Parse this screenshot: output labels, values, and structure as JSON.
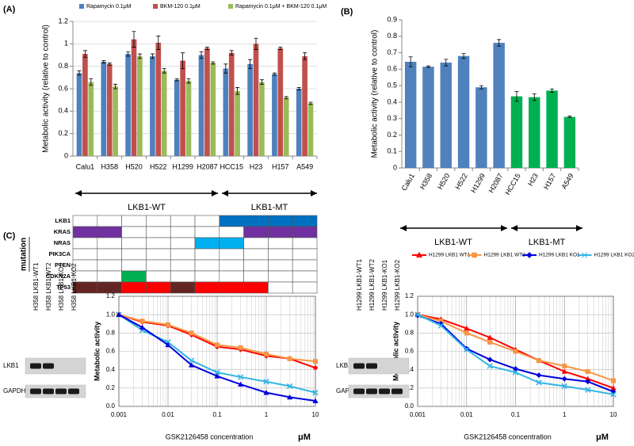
{
  "panel_labels": [
    "(A)",
    "(B)",
    "(C)"
  ],
  "chart_data": [
    {
      "type": "bar",
      "ylabel": "Metabolic activity (relative to control)",
      "categories": [
        "Calu1",
        "H358",
        "H520",
        "H522",
        "H1299",
        "H2087",
        "HCC15",
        "H23",
        "H157",
        "A549"
      ],
      "series": [
        {
          "name": "Rapamycin 0.1μM",
          "color": "#4f81bd",
          "values": [
            0.74,
            0.84,
            0.91,
            0.89,
            0.68,
            0.9,
            0.78,
            0.82,
            0.73,
            0.6
          ],
          "errors": [
            0.02,
            0.01,
            0.02,
            0.02,
            0.01,
            0.03,
            0.04,
            0.04,
            0.01,
            0.01
          ]
        },
        {
          "name": "BKM-120 0.1μM",
          "color": "#c0504d",
          "values": [
            0.91,
            0.82,
            1.04,
            1.01,
            0.85,
            0.96,
            0.92,
            1.0,
            0.96,
            0.89
          ],
          "errors": [
            0.03,
            0.01,
            0.07,
            0.06,
            0.07,
            0.01,
            0.02,
            0.05,
            0.01,
            0.03
          ]
        },
        {
          "name": "Rapamycin 0.1μM + BKM-120 0.1μM",
          "color": "#9bbb59",
          "values": [
            0.66,
            0.62,
            0.89,
            0.76,
            0.67,
            0.83,
            0.58,
            0.66,
            0.52,
            0.47
          ],
          "errors": [
            0.03,
            0.02,
            0.02,
            0.02,
            0.02,
            0.01,
            0.03,
            0.02,
            0.01,
            0.01
          ]
        }
      ],
      "ylim": [
        0,
        1.2
      ],
      "yticks": [
        0,
        0.2,
        0.4,
        0.6,
        0.8,
        1,
        1.2
      ],
      "grid": true,
      "annotations": [
        "LKB1-WT",
        "LKB1-MT"
      ]
    },
    {
      "type": "bar",
      "ylabel": "Metabolic activity (relative to control)",
      "categories": [
        "Calu1",
        "H358",
        "H520",
        "H522",
        "H1299",
        "H2087",
        "HCC15",
        "H23",
        "H157",
        "A549"
      ],
      "values": [
        0.645,
        0.615,
        0.64,
        0.68,
        0.49,
        0.76,
        0.435,
        0.43,
        0.47,
        0.31
      ],
      "errors": [
        0.03,
        0.005,
        0.02,
        0.015,
        0.01,
        0.02,
        0.03,
        0.02,
        0.01,
        0.005
      ],
      "colors": [
        "#4f81bd",
        "#4f81bd",
        "#4f81bd",
        "#4f81bd",
        "#4f81bd",
        "#4f81bd",
        "#00b050",
        "#00b050",
        "#00b050",
        "#00b050"
      ],
      "ylim": [
        0,
        0.9
      ],
      "yticks": [
        0,
        0.1,
        0.2,
        0.3,
        0.4,
        0.5,
        0.6,
        0.7,
        0.8,
        0.9
      ],
      "grid": false,
      "annotations": [
        "LKB1-WT",
        "LKB1-MT"
      ]
    },
    {
      "type": "line",
      "ylabel": "Metabolic activity",
      "xlabel": "GSK2126458 concentration",
      "xunit": "μM",
      "xscale": "log",
      "x": [
        0.001,
        0.003,
        0.01,
        0.03,
        0.1,
        0.3,
        1,
        3,
        10
      ],
      "series": [
        {
          "name": "H358 LKB1 WT1",
          "color": "#ff0000",
          "marker": "diamond",
          "values": [
            1.0,
            0.92,
            0.88,
            0.78,
            0.65,
            0.62,
            0.55,
            0.52,
            0.42
          ]
        },
        {
          "name": "H358 LKB1 WT2",
          "color": "#f79646",
          "marker": "square",
          "values": [
            1.0,
            0.93,
            0.89,
            0.8,
            0.67,
            0.64,
            0.57,
            0.52,
            0.49
          ]
        },
        {
          "name": "H358 LKB1 KO1",
          "color": "#33b5e5",
          "marker": "x",
          "values": [
            1.0,
            0.83,
            0.7,
            0.5,
            0.37,
            0.32,
            0.27,
            0.22,
            0.15
          ]
        },
        {
          "name": "H358 LKB1 KO2",
          "color": "#0000dd",
          "marker": "triangle",
          "values": [
            1.0,
            0.86,
            0.67,
            0.45,
            0.33,
            0.24,
            0.15,
            0.1,
            0.06
          ]
        }
      ],
      "xlim": [
        0.001,
        10
      ],
      "xticks": [
        0.001,
        0.01,
        0.1,
        1,
        10
      ],
      "xminor": [
        0.002,
        0.003,
        0.004,
        0.005,
        0.006,
        0.007,
        0.008,
        0.009,
        0.02,
        0.03,
        0.04,
        0.05,
        0.06,
        0.07,
        0.08,
        0.09,
        0.2,
        0.3,
        0.4,
        0.5,
        0.6,
        0.7,
        0.8,
        0.9,
        2,
        3,
        4,
        5,
        6,
        7,
        8,
        9
      ],
      "ylim": [
        0,
        1.2
      ],
      "yticks": [
        {
          "value": 0,
          "label": "0.0"
        },
        {
          "value": 0.2,
          "label": "0.2"
        },
        {
          "value": 0.4,
          "label": "0.4"
        },
        {
          "value": 0.6,
          "label": "0.6"
        },
        {
          "value": 0.8,
          "label": "0.8"
        },
        {
          "value": 1,
          "label": "1.0"
        },
        {
          "value": 1.2,
          "label": "1.2"
        }
      ],
      "grid": true
    },
    {
      "type": "line",
      "ylabel": "Metabolic activity",
      "xlabel": "GSK2126458 concentration",
      "xunit": "μM",
      "xscale": "log",
      "x": [
        0.001,
        0.003,
        0.01,
        0.03,
        0.1,
        0.3,
        1,
        3,
        10
      ],
      "series": [
        {
          "name": "H1299 LKB1 WT1",
          "color": "#ff0000",
          "marker": "triangle",
          "values": [
            1.0,
            0.95,
            0.85,
            0.75,
            0.62,
            0.5,
            0.38,
            0.3,
            0.2
          ]
        },
        {
          "name": "H1299 LKB1 WT2",
          "color": "#f79646",
          "marker": "square",
          "values": [
            1.0,
            0.93,
            0.8,
            0.7,
            0.6,
            0.5,
            0.44,
            0.38,
            0.28
          ]
        },
        {
          "name": "H1299 LKB1 KO1",
          "color": "#0000dd",
          "marker": "diamond",
          "values": [
            0.99,
            0.9,
            0.63,
            0.51,
            0.41,
            0.34,
            0.3,
            0.27,
            0.16
          ]
        },
        {
          "name": "H1299 LKB1 KO2",
          "color": "#33b5e5",
          "marker": "x",
          "values": [
            1.0,
            0.88,
            0.62,
            0.44,
            0.37,
            0.26,
            0.22,
            0.18,
            0.13
          ]
        }
      ],
      "xlim": [
        0.001,
        10
      ],
      "xticks": [
        0.001,
        0.01,
        0.1,
        1,
        10
      ],
      "xminor": [
        0.002,
        0.003,
        0.004,
        0.005,
        0.006,
        0.007,
        0.008,
        0.009,
        0.02,
        0.03,
        0.04,
        0.05,
        0.06,
        0.07,
        0.08,
        0.09,
        0.2,
        0.3,
        0.4,
        0.5,
        0.6,
        0.7,
        0.8,
        0.9,
        2,
        3,
        4,
        5,
        6,
        7,
        8,
        9
      ],
      "ylim": [
        0,
        1.2
      ],
      "yticks": [
        {
          "value": 0,
          "label": "0.0"
        },
        {
          "value": 0.2,
          "label": "0.2"
        },
        {
          "value": 0.4,
          "label": "0.4"
        },
        {
          "value": 0.6,
          "label": "0.6"
        },
        {
          "value": 0.8,
          "label": "0.8"
        },
        {
          "value": 1,
          "label": "1.0"
        },
        {
          "value": 1.2,
          "label": "1.2"
        }
      ],
      "grid": true
    }
  ],
  "mutation_table": {
    "label": "mutation",
    "genes": [
      "LKB1",
      "KRAS",
      "NRAS",
      "PIK3CA",
      "PTEN",
      "CDKN2A",
      "TP53"
    ],
    "cells": [
      [
        null,
        null,
        null,
        null,
        null,
        null,
        "#0070c0",
        "#0070c0",
        "#0070c0",
        "#0070c0"
      ],
      [
        "#7030a0",
        "#7030a0",
        null,
        null,
        null,
        null,
        null,
        "#7030a0",
        "#7030a0",
        "#7030a0"
      ],
      [
        null,
        null,
        null,
        null,
        null,
        "#00b0f0",
        "#00b0f0",
        null,
        null,
        null
      ],
      [
        null,
        null,
        null,
        null,
        null,
        null,
        null,
        null,
        null,
        null
      ],
      [
        null,
        null,
        null,
        null,
        null,
        null,
        null,
        null,
        null,
        null
      ],
      [
        null,
        null,
        "#00b050",
        null,
        null,
        null,
        null,
        null,
        null,
        null
      ],
      [
        "#632523",
        "#632523",
        "#ff0000",
        "#ff0000",
        "#632523",
        "#ff0000",
        "#ff0000",
        "#ff0000",
        null,
        null
      ]
    ]
  },
  "blots": [
    {
      "lanes": [
        "H358 LKB1-WT1",
        "H358 LKB1-WT2",
        "H358 LKB1-KO1",
        "H358 LKB1-KO2"
      ],
      "rows": [
        "LKB1",
        "GAPDH"
      ]
    },
    {
      "lanes": [
        "H1299 LKB1-WT1",
        "H1299 LKB1-WT2",
        "H1299 LKB1-KO1",
        "H1299 LKB1-KO2"
      ],
      "rows": [
        "LKB1",
        "GAPDH"
      ]
    }
  ]
}
